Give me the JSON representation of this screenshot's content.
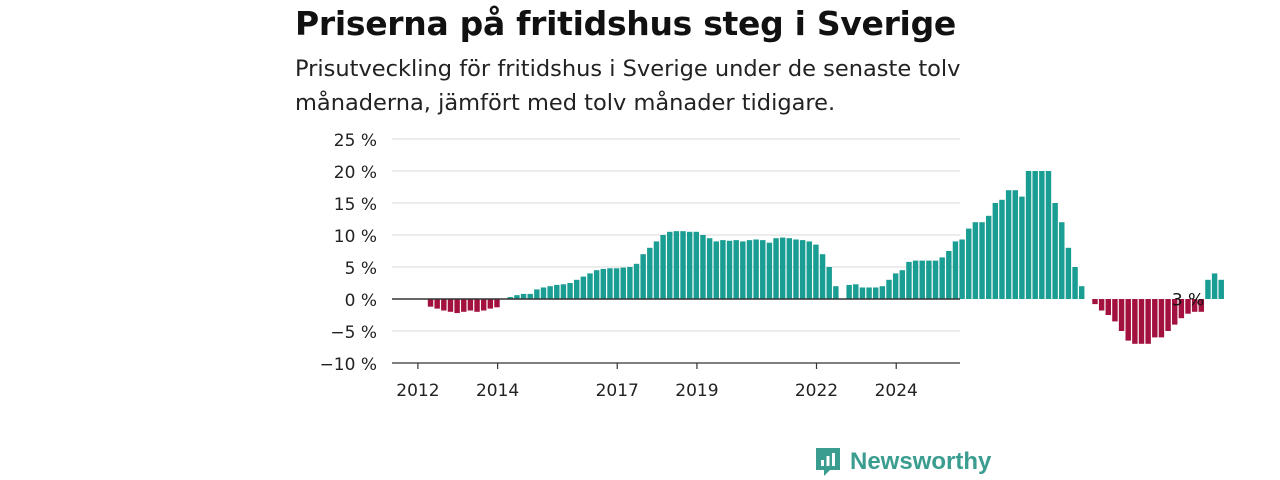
{
  "header": {
    "title": "Priserna på fritidshus steg i Sverige",
    "subtitle": "Prisutveckling för fritidshus i Sverige under de senaste tolv månaderna, jämfört med tolv månader tidigare."
  },
  "brand": {
    "name": "Newsworthy",
    "icon": "newsworthy-logo-icon"
  },
  "colors": {
    "positive": "#1a9e93",
    "negative": "#a3123f",
    "grid": "#d9d9d9",
    "zero": "#333333"
  },
  "chart_data": {
    "type": "bar",
    "title": "Priserna på fritidshus steg i Sverige",
    "xlabel": "",
    "ylabel": "",
    "ylim": [
      -10,
      25
    ],
    "yticks": [
      {
        "value": 25,
        "label": "25 %"
      },
      {
        "value": 20,
        "label": "20 %"
      },
      {
        "value": 15,
        "label": "15 %"
      },
      {
        "value": 10,
        "label": "10 %"
      },
      {
        "value": 5,
        "label": "5 %"
      },
      {
        "value": 0,
        "label": "0 %"
      },
      {
        "value": -5,
        "label": "−5 %"
      },
      {
        "value": -10,
        "label": "−10 %"
      }
    ],
    "xticks": [
      {
        "value": 2012,
        "label": "2012"
      },
      {
        "value": 2014,
        "label": "2014"
      },
      {
        "value": 2017,
        "label": "2017"
      },
      {
        "value": 2019,
        "label": "2019"
      },
      {
        "value": 2022,
        "label": "2022"
      },
      {
        "value": 2024,
        "label": "2024"
      }
    ],
    "xlim": [
      2011.35,
      2025.6
    ],
    "grid": true,
    "x_start": 2011.65,
    "step": 0.1667,
    "values": [
      0,
      0,
      0,
      0,
      -1.2,
      -1.5,
      -1.8,
      -2,
      -2.2,
      -2,
      -1.8,
      -2,
      -1.8,
      -1.5,
      -1.3,
      0,
      0.3,
      0.6,
      0.8,
      0.8,
      1.5,
      1.8,
      2,
      2.2,
      2.3,
      2.5,
      3,
      3.5,
      4,
      4.5,
      4.7,
      4.8,
      4.8,
      4.9,
      5,
      5.5,
      7,
      8,
      9,
      10,
      10.5,
      10.6,
      10.6,
      10.5,
      10.5,
      10,
      9.5,
      9,
      9.2,
      9.1,
      9.2,
      9,
      9.2,
      9.3,
      9.2,
      8.8,
      9.5,
      9.6,
      9.5,
      9.3,
      9.2,
      9,
      8.5,
      7,
      5,
      2,
      0,
      2.2,
      2.3,
      1.8,
      1.8,
      1.8,
      2,
      3,
      4,
      4.5,
      5.8,
      6,
      6,
      6,
      6,
      6.5,
      7.5,
      9,
      9.3,
      11,
      12,
      12,
      13,
      15,
      15.5,
      17,
      17,
      16,
      20,
      20,
      20,
      20,
      15,
      12,
      8,
      5,
      2,
      0,
      -0.8,
      -1.8,
      -2.5,
      -3.5,
      -5,
      -6.5,
      -7,
      -7,
      -7,
      -6,
      -6,
      -5,
      -4,
      -3,
      -2.3,
      -2,
      -2,
      3,
      4,
      3
    ],
    "annotations": [
      {
        "index": 118,
        "label": "3 %"
      }
    ]
  }
}
